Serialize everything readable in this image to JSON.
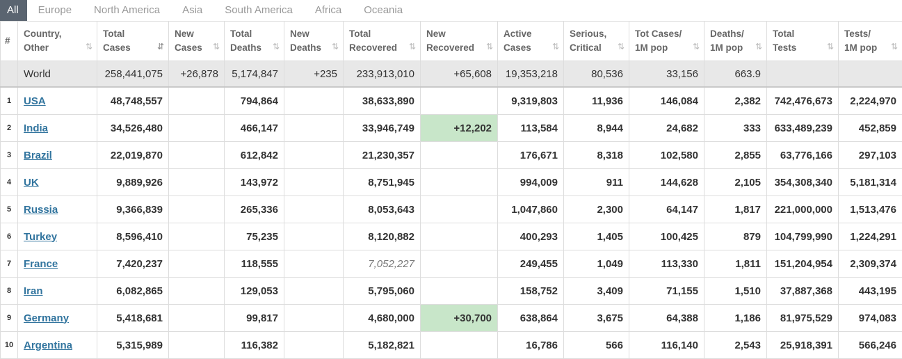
{
  "tabs": [
    "All",
    "Europe",
    "North America",
    "Asia",
    "South America",
    "Africa",
    "Oceania"
  ],
  "headers": [
    {
      "l1": "#",
      "l2": ""
    },
    {
      "l1": "Country,",
      "l2": "Other"
    },
    {
      "l1": "Total",
      "l2": "Cases"
    },
    {
      "l1": "New",
      "l2": "Cases"
    },
    {
      "l1": "Total",
      "l2": "Deaths"
    },
    {
      "l1": "New",
      "l2": "Deaths"
    },
    {
      "l1": "Total",
      "l2": "Recovered"
    },
    {
      "l1": "New",
      "l2": "Recovered"
    },
    {
      "l1": "Active",
      "l2": "Cases"
    },
    {
      "l1": "Serious,",
      "l2": "Critical"
    },
    {
      "l1": "Tot Cases/",
      "l2": "1M pop"
    },
    {
      "l1": "Deaths/",
      "l2": "1M pop"
    },
    {
      "l1": "Total",
      "l2": "Tests"
    },
    {
      "l1": "Tests/",
      "l2": "1M pop"
    }
  ],
  "world": {
    "country": "World",
    "total_cases": "258,441,075",
    "new_cases": "+26,878",
    "total_deaths": "5,174,847",
    "new_deaths": "+235",
    "total_recovered": "233,913,010",
    "new_recovered": "+65,608",
    "active": "19,353,218",
    "serious": "80,536",
    "cases_per_m": "33,156",
    "deaths_per_m": "663.9",
    "total_tests": "",
    "tests_per_m": ""
  },
  "rows": [
    {
      "idx": "1",
      "country": "USA",
      "total_cases": "48,748,557",
      "new_cases": "",
      "total_deaths": "794,864",
      "new_deaths": "",
      "total_recovered": "38,633,890",
      "new_recovered": "",
      "active": "9,319,803",
      "serious": "11,936",
      "cases_per_m": "146,084",
      "deaths_per_m": "2,382",
      "total_tests": "742,476,673",
      "tests_per_m": "2,224,970"
    },
    {
      "idx": "2",
      "country": "India",
      "total_cases": "34,526,480",
      "new_cases": "",
      "total_deaths": "466,147",
      "new_deaths": "",
      "total_recovered": "33,946,749",
      "new_recovered": "+12,202",
      "active": "113,584",
      "serious": "8,944",
      "cases_per_m": "24,682",
      "deaths_per_m": "333",
      "total_tests": "633,489,239",
      "tests_per_m": "452,859"
    },
    {
      "idx": "3",
      "country": "Brazil",
      "total_cases": "22,019,870",
      "new_cases": "",
      "total_deaths": "612,842",
      "new_deaths": "",
      "total_recovered": "21,230,357",
      "new_recovered": "",
      "active": "176,671",
      "serious": "8,318",
      "cases_per_m": "102,580",
      "deaths_per_m": "2,855",
      "total_tests": "63,776,166",
      "tests_per_m": "297,103"
    },
    {
      "idx": "4",
      "country": "UK",
      "total_cases": "9,889,926",
      "new_cases": "",
      "total_deaths": "143,972",
      "new_deaths": "",
      "total_recovered": "8,751,945",
      "new_recovered": "",
      "active": "994,009",
      "serious": "911",
      "cases_per_m": "144,628",
      "deaths_per_m": "2,105",
      "total_tests": "354,308,340",
      "tests_per_m": "5,181,314"
    },
    {
      "idx": "5",
      "country": "Russia",
      "total_cases": "9,366,839",
      "new_cases": "",
      "total_deaths": "265,336",
      "new_deaths": "",
      "total_recovered": "8,053,643",
      "new_recovered": "",
      "active": "1,047,860",
      "serious": "2,300",
      "cases_per_m": "64,147",
      "deaths_per_m": "1,817",
      "total_tests": "221,000,000",
      "tests_per_m": "1,513,476"
    },
    {
      "idx": "6",
      "country": "Turkey",
      "total_cases": "8,596,410",
      "new_cases": "",
      "total_deaths": "75,235",
      "new_deaths": "",
      "total_recovered": "8,120,882",
      "new_recovered": "",
      "active": "400,293",
      "serious": "1,405",
      "cases_per_m": "100,425",
      "deaths_per_m": "879",
      "total_tests": "104,799,990",
      "tests_per_m": "1,224,291"
    },
    {
      "idx": "7",
      "country": "France",
      "total_cases": "7,420,237",
      "new_cases": "",
      "total_deaths": "118,555",
      "new_deaths": "",
      "total_recovered": "7,052,227",
      "new_recovered": "",
      "active": "249,455",
      "serious": "1,049",
      "cases_per_m": "113,330",
      "deaths_per_m": "1,811",
      "total_tests": "151,204,954",
      "tests_per_m": "2,309,374"
    },
    {
      "idx": "8",
      "country": "Iran",
      "total_cases": "6,082,865",
      "new_cases": "",
      "total_deaths": "129,053",
      "new_deaths": "",
      "total_recovered": "5,795,060",
      "new_recovered": "",
      "active": "158,752",
      "serious": "3,409",
      "cases_per_m": "71,155",
      "deaths_per_m": "1,510",
      "total_tests": "37,887,368",
      "tests_per_m": "443,195"
    },
    {
      "idx": "9",
      "country": "Germany",
      "total_cases": "5,418,681",
      "new_cases": "",
      "total_deaths": "99,817",
      "new_deaths": "",
      "total_recovered": "4,680,000",
      "new_recovered": "+30,700",
      "active": "638,864",
      "serious": "3,675",
      "cases_per_m": "64,388",
      "deaths_per_m": "1,186",
      "total_tests": "81,975,529",
      "tests_per_m": "974,083"
    },
    {
      "idx": "10",
      "country": "Argentina",
      "total_cases": "5,315,989",
      "new_cases": "",
      "total_deaths": "116,382",
      "new_deaths": "",
      "total_recovered": "5,182,821",
      "new_recovered": "",
      "active": "16,786",
      "serious": "566",
      "cases_per_m": "116,140",
      "deaths_per_m": "2,543",
      "total_tests": "25,918,391",
      "tests_per_m": "566,246"
    }
  ]
}
